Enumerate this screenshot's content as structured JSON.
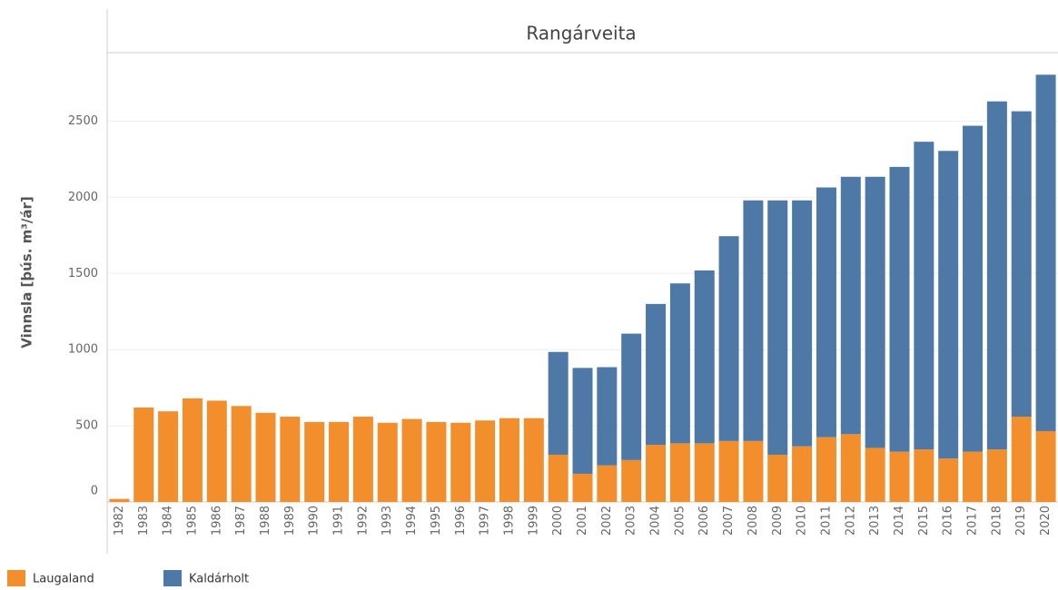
{
  "chart_data": {
    "type": "bar",
    "stacked": true,
    "title": "Rangárveita",
    "y_label": "Vinnsla [þús. m³/ár]",
    "categories": [
      "1982",
      "1983",
      "1984",
      "1985",
      "1986",
      "1987",
      "1988",
      "1989",
      "1990",
      "1991",
      "1992",
      "1993",
      "1994",
      "1995",
      "1996",
      "1997",
      "1998",
      "1999",
      "2000",
      "2001",
      "2002",
      "2003",
      "2004",
      "2005",
      "2006",
      "2007",
      "2008",
      "2009",
      "2010",
      "2011",
      "2012",
      "2013",
      "2014",
      "2015",
      "2016",
      "2017",
      "2018",
      "2019",
      "2020"
    ],
    "series": [
      {
        "name": "Laugaland",
        "color": "#f28e2b",
        "values": [
          20,
          620,
          595,
          680,
          665,
          630,
          585,
          560,
          525,
          525,
          560,
          520,
          545,
          525,
          520,
          535,
          550,
          550,
          310,
          185,
          240,
          275,
          375,
          385,
          385,
          400,
          400,
          310,
          365,
          425,
          445,
          355,
          330,
          345,
          285,
          330,
          345,
          560,
          465
        ]
      },
      {
        "name": "Kaldárholt",
        "color": "#4e79a7",
        "values": [
          null,
          null,
          null,
          null,
          null,
          null,
          null,
          null,
          null,
          null,
          null,
          null,
          null,
          null,
          null,
          null,
          null,
          null,
          675,
          695,
          645,
          830,
          925,
          1050,
          1135,
          1345,
          1580,
          1670,
          1615,
          1640,
          1690,
          1780,
          1870,
          2020,
          2020,
          2140,
          2285,
          2005,
          2340
        ]
      }
    ],
    "ylim": [
      0,
      2950
    ],
    "yticks": [
      0,
      500,
      1000,
      1500,
      2000,
      2500
    ],
    "grid": true
  }
}
